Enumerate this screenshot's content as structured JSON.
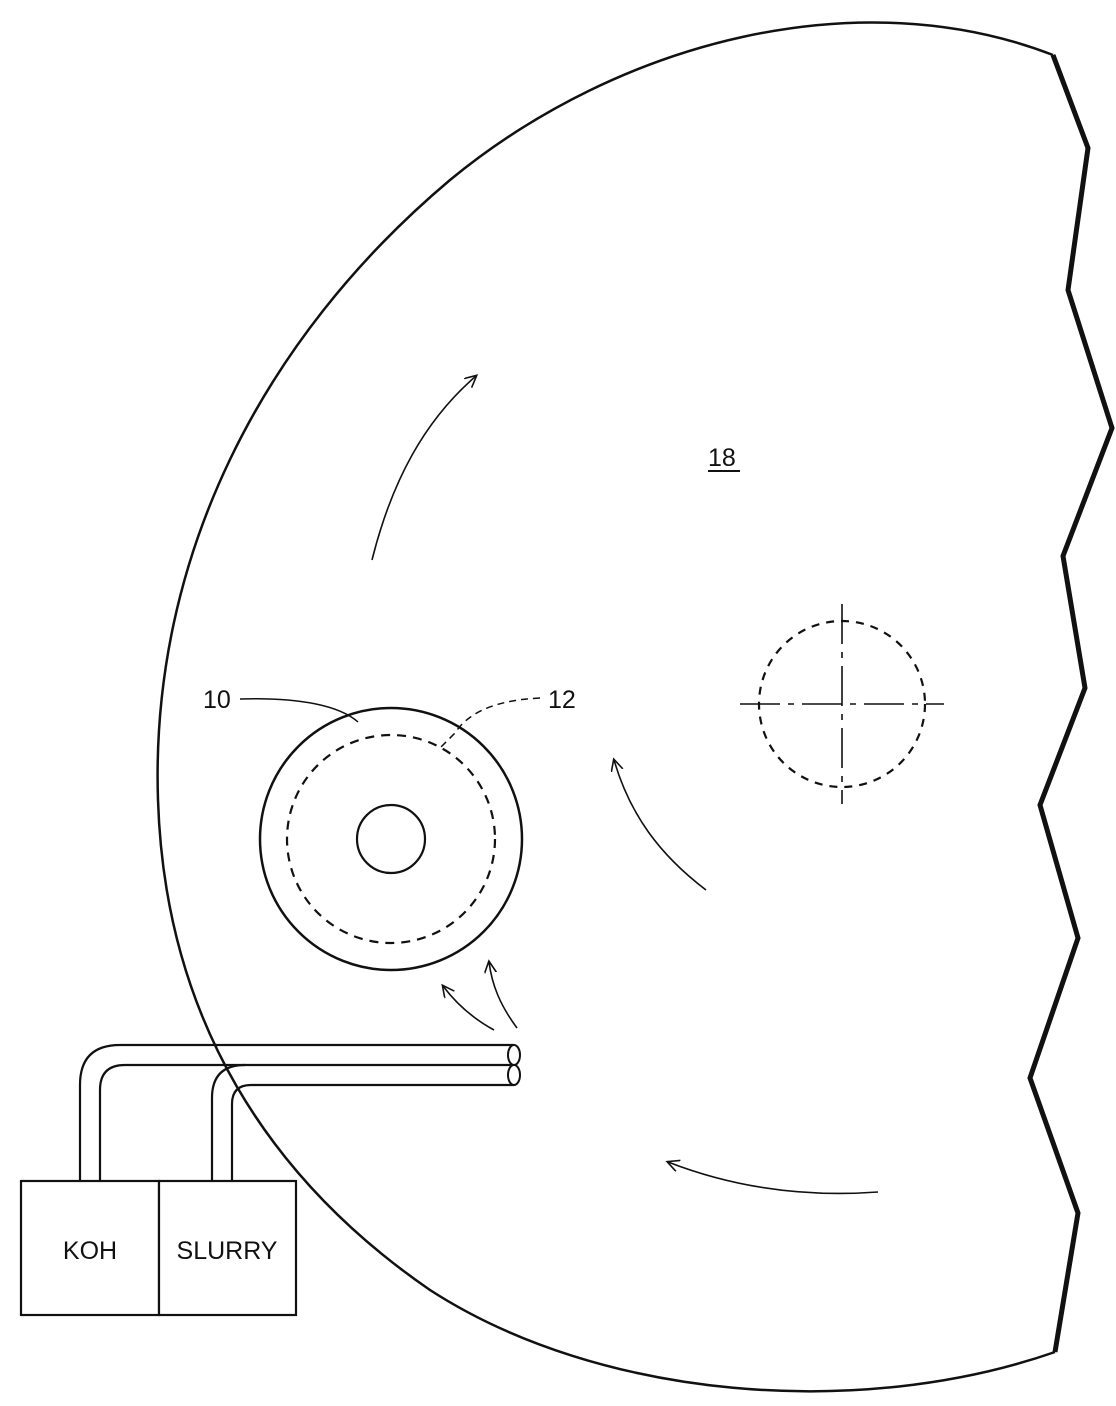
{
  "figure": {
    "labels": {
      "platen": "18",
      "wafer": "10",
      "pad_region": "12"
    },
    "supply_boxes": {
      "koh": "KOH",
      "slurry": "SLURRY"
    },
    "colors": {
      "ink": "#111111",
      "background": "#ffffff"
    }
  }
}
